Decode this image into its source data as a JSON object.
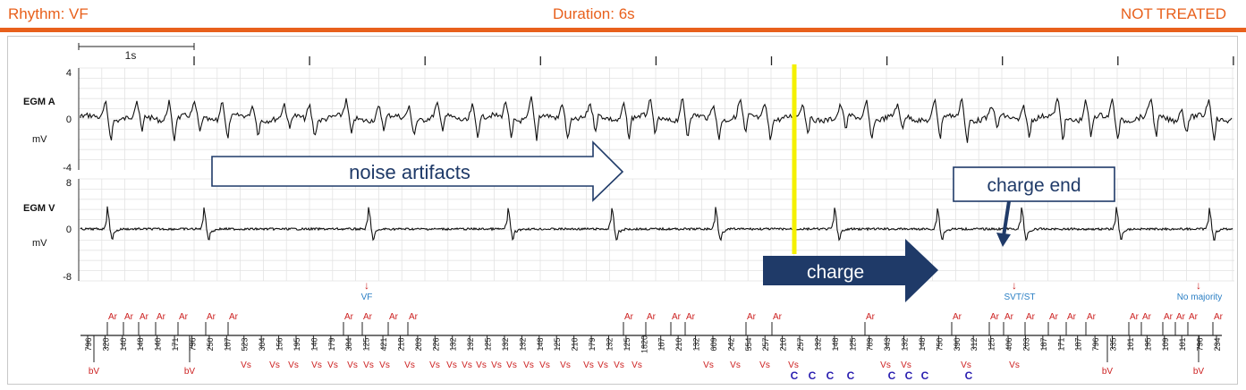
{
  "header": {
    "rhythm": "Rhythm: VF",
    "duration": "Duration: 6s",
    "status": "NOT TREATED"
  },
  "scale_bar_label": "1s",
  "channels": [
    {
      "name": "EGM A",
      "unit": "mV",
      "ticks": [
        "4",
        "0",
        "-4"
      ]
    },
    {
      "name": "EGM V",
      "unit": "mV",
      "ticks": [
        "8",
        "0",
        "-8"
      ]
    }
  ],
  "annotations": {
    "noise": "noise artifacts",
    "charge": "charge",
    "charge_end": "charge end"
  },
  "detections": {
    "vf": "VF",
    "svt": "SVT/ST",
    "no_majority": "No majority"
  },
  "marker_intervals": [
    "796",
    "320",
    "140",
    "148",
    "140",
    "171",
    "796",
    "250",
    "187",
    "523",
    "304",
    "156",
    "195",
    "140",
    "179",
    "384",
    "125",
    "421",
    "218",
    "203",
    "226",
    "132",
    "132",
    "125",
    "132",
    "132",
    "148",
    "125",
    "210",
    "179",
    "132",
    "125",
    "1820",
    "187",
    "210",
    "132",
    "609",
    "242",
    "554",
    "257",
    "210",
    "257",
    "132",
    "148",
    "125",
    "789",
    "343",
    "132",
    "148",
    "750",
    "390",
    "312",
    "125",
    "406",
    "203",
    "187",
    "171",
    "187",
    "796",
    "335",
    "101",
    "195",
    "109",
    "101",
    "796",
    "234"
  ],
  "marker_labels": {
    "atrial": "Ar",
    "ventricular_sense": "Vs",
    "blanked_ventricular": "bV",
    "charge": "C"
  },
  "colors": {
    "header_orange": "#e8601c",
    "arrow_navy": "#1f3a68",
    "marker_red": "#cc1f1f",
    "charge_marker_blue": "#2a1fb0",
    "detection_blue": "#2b7fc4",
    "sync_line_yellow": "#f4f000"
  }
}
